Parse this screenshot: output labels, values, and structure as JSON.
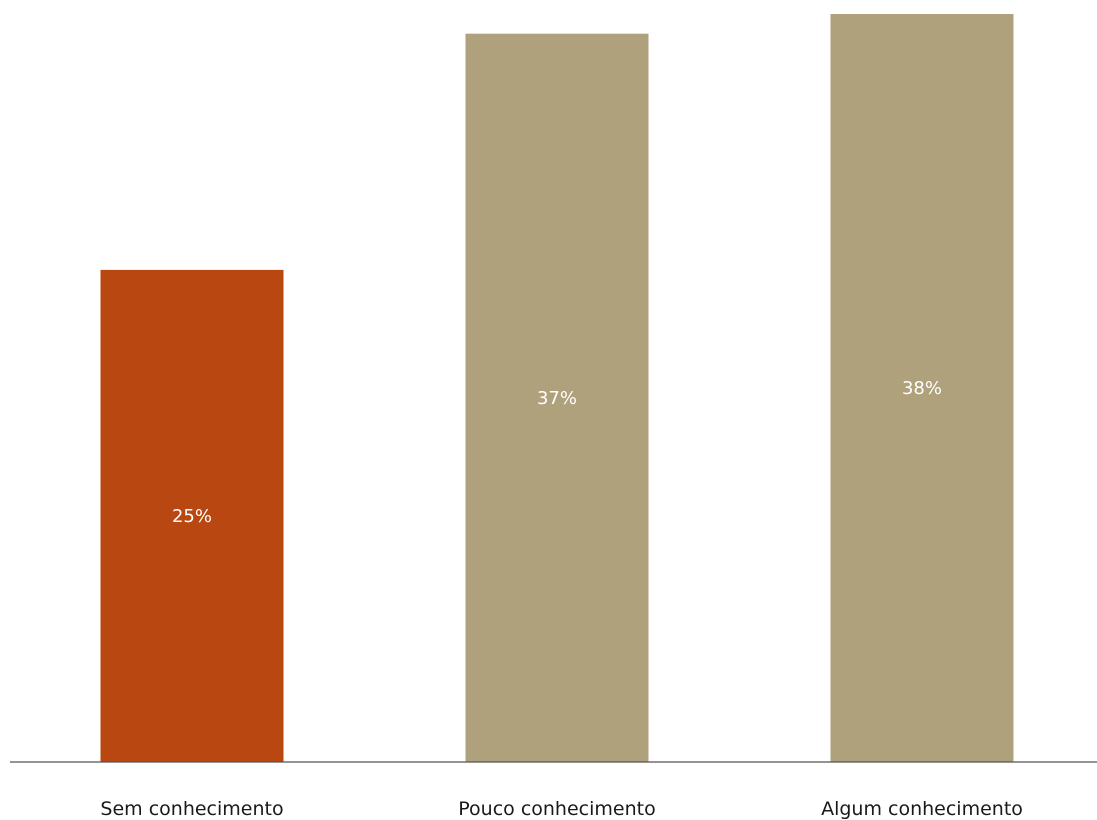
{
  "chart_data": {
    "type": "bar",
    "categories": [
      "Sem conhecimento",
      "Pouco conhecimento",
      "Algum conhecimento"
    ],
    "values": [
      25,
      37,
      38
    ],
    "value_labels": [
      "25%",
      "37%",
      "38%"
    ],
    "unit": "%",
    "ylim": [
      0,
      38
    ],
    "grid": false,
    "legend": "none",
    "colors": [
      "#b84712",
      "#afa17c",
      "#afa17c"
    ],
    "axis_color": "#555555"
  }
}
